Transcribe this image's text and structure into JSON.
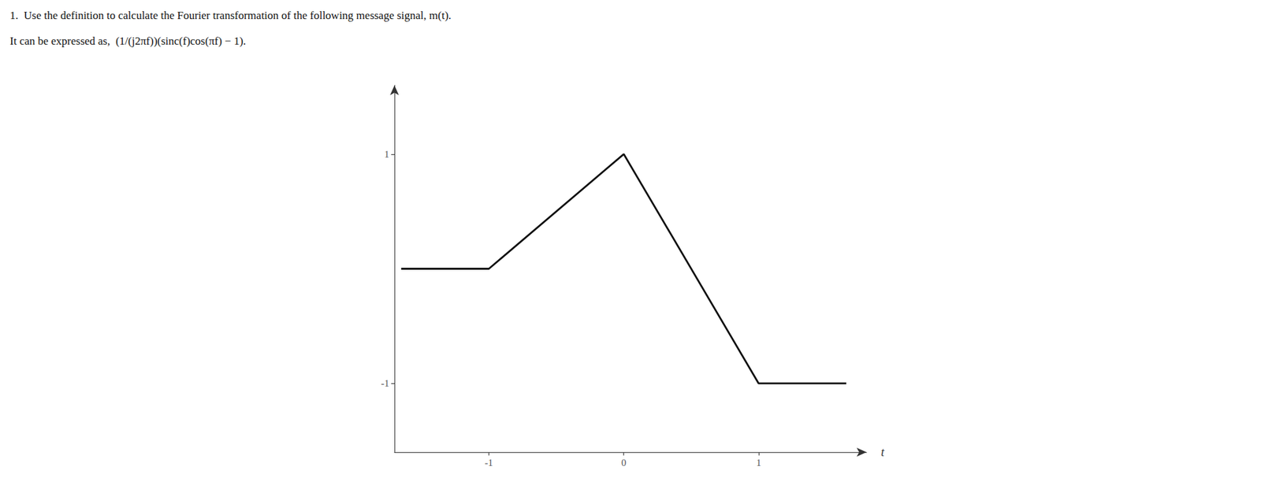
{
  "chart_data": {
    "type": "line",
    "title": "1.  Use the definition to calculate the Fourier transformation of the following message signal, m(t).",
    "subtitle": "It can be expressed as,  (1/(j2πf))(sinc(f)cos(πf) − 1).",
    "x_label": "t",
    "x": [
      -1.65,
      -1,
      0,
      1,
      1.65
    ],
    "values": [
      0,
      0,
      1,
      -1,
      -1
    ],
    "color": "#111111",
    "xlim": [
      -1.7,
      1.8
    ],
    "xticks": [
      -1,
      0,
      1
    ],
    "ylim": [
      -1.6,
      1.6
    ],
    "yticks": [
      -1,
      1
    ],
    "grid": false
  }
}
